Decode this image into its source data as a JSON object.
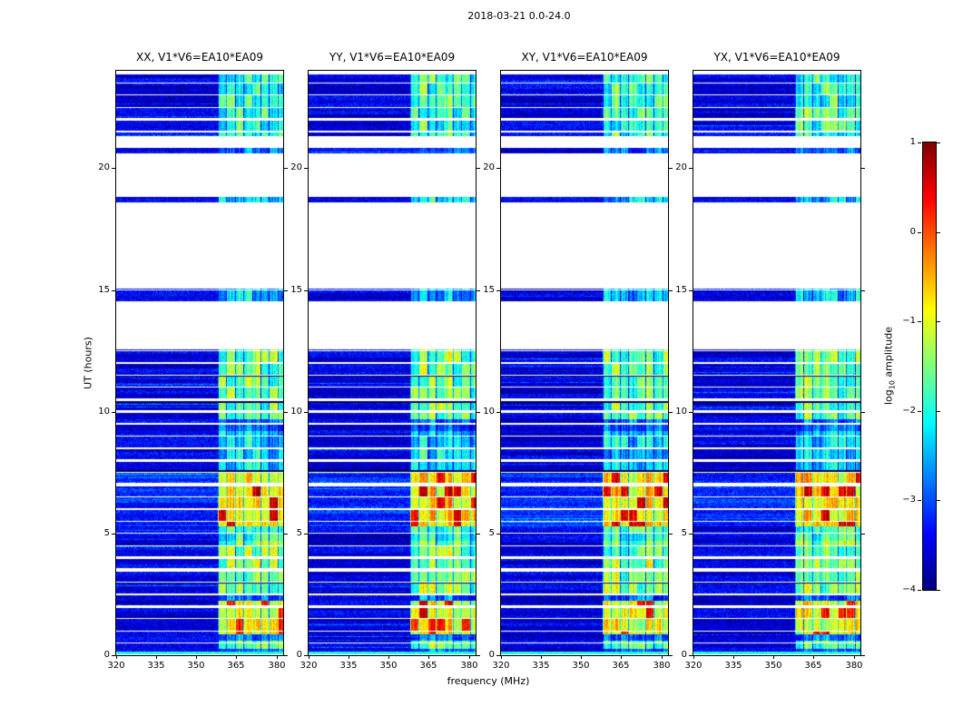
{
  "figure": {
    "title": "2018-03-21 0.0-24.0",
    "xlabel": "frequency (MHz)",
    "ylabel": "UT (hours)",
    "colorbar_label": {
      "prefix": "log",
      "sub": "10",
      "suffix": " amplitude"
    },
    "background_color": "#ffffff"
  },
  "chart_data": {
    "type": "heatmap",
    "title": "2018-03-21 0.0-24.0",
    "xlabel": "frequency (MHz)",
    "ylabel": "UT (hours)",
    "colormap": "jet",
    "panels": [
      {
        "polarization": "XX",
        "title": "XX, V1*V6=EA10*EA09"
      },
      {
        "polarization": "YY",
        "title": "YY, V1*V6=EA10*EA09"
      },
      {
        "polarization": "XY",
        "title": "XY, V1*V6=EA10*EA09"
      },
      {
        "polarization": "YX",
        "title": "YX, V1*V6=EA10*EA09"
      }
    ],
    "x_axis": {
      "label": "frequency (MHz)",
      "min": 320,
      "max": 382.5,
      "ticks": [
        320,
        335,
        350,
        365,
        380
      ],
      "unit": "MHz"
    },
    "y_axis": {
      "label": "UT (hours)",
      "min": 0,
      "max": 24,
      "ticks": [
        0,
        5,
        10,
        15,
        20
      ],
      "unit": "hours"
    },
    "colorbar": {
      "label": "log10 amplitude",
      "min": -4,
      "max": 1,
      "ticks": [
        1,
        0,
        -1,
        -2,
        -3,
        -4
      ]
    },
    "observed_time_intervals_ut": [
      [
        0.02,
        12.55
      ],
      [
        14.55,
        15.05
      ],
      [
        18.6,
        18.82
      ],
      [
        20.62,
        20.85
      ],
      [
        21.3,
        23.85
      ]
    ],
    "scan_boundary_interval_hours": 0.5,
    "dark_scan_rows_ut": [
      2.98,
      7.57,
      10.4,
      11.48
    ],
    "background_log_amplitude": -3.55,
    "elevated_background": {
      "ut": [
        5.3,
        7.6
      ],
      "boost": 0.35
    },
    "rfi_band_mhz": [
      358,
      382.5
    ],
    "rfi_time_profile": [
      {
        "ut": [
          0.02,
          0.14
        ],
        "log_amplitude": -2.0,
        "full_width": true
      },
      {
        "ut": [
          0.25,
          0.6
        ],
        "log_amplitude": -1.6
      },
      {
        "ut": [
          0.85,
          2.25
        ],
        "log_amplitude": -0.9
      },
      {
        "ut": [
          2.5,
          4.7
        ],
        "log_amplitude": -1.5
      },
      {
        "ut": [
          4.7,
          5.3
        ],
        "log_amplitude": -1.9
      },
      {
        "ut": [
          5.3,
          7.55
        ],
        "log_amplitude": -0.7
      },
      {
        "ut": [
          7.6,
          9.2
        ],
        "log_amplitude": -2.3
      },
      {
        "ut": [
          9.7,
          12.55
        ],
        "log_amplitude": -1.6
      },
      {
        "ut": [
          14.55,
          15.05
        ],
        "log_amplitude": -2.4
      },
      {
        "ut": [
          18.6,
          18.82
        ],
        "log_amplitude": -2.3
      },
      {
        "ut": [
          21.3,
          23.85
        ],
        "log_amplitude": -1.9
      }
    ]
  }
}
